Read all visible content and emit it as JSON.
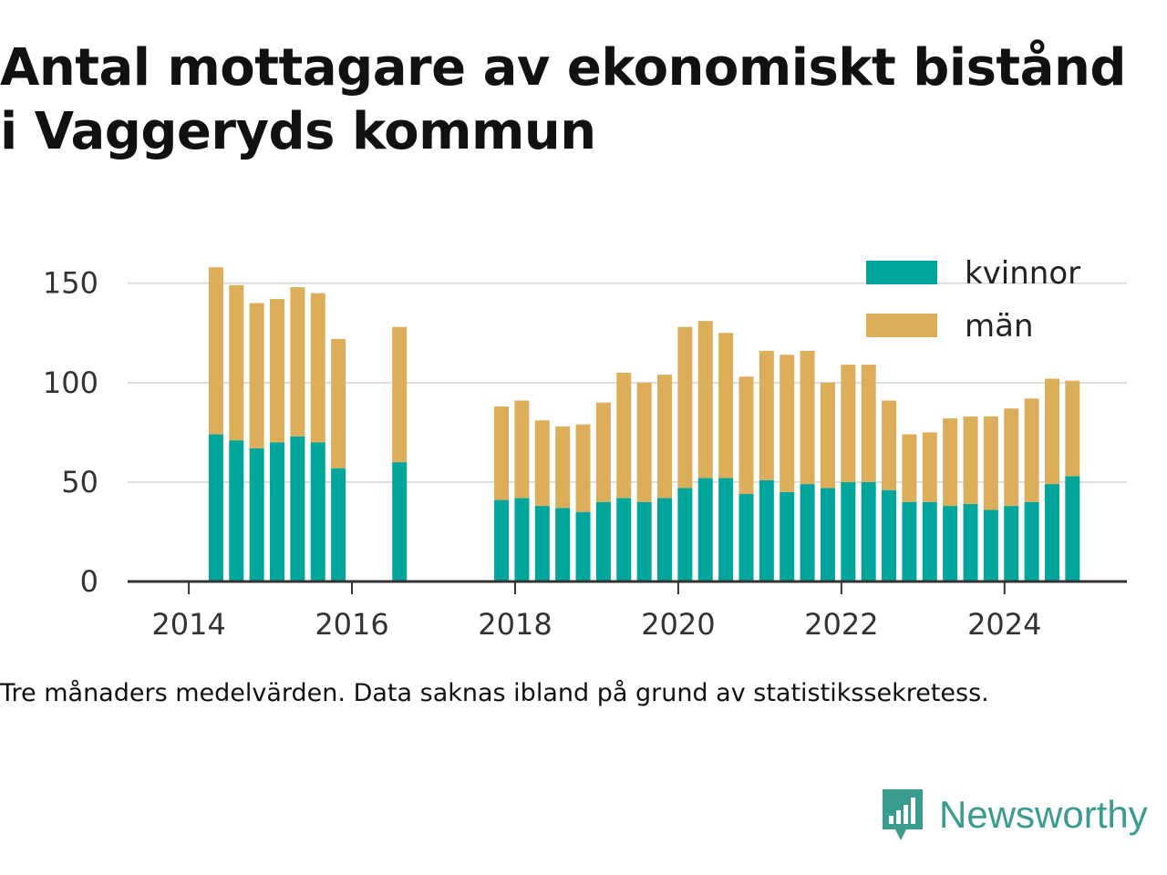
{
  "title_line1": "Antal mottagare av ekonomiskt bistånd",
  "title_line2": "i Vaggeryds kommun",
  "note": "Tre månaders medelvärden. Data saknas ibland på grund av statistikssekretess.",
  "brand": {
    "name": "Newsworthy",
    "icon": "newsworthy-chart-bubble-icon"
  },
  "chart_data": {
    "type": "bar",
    "stacked": true,
    "x": [
      "2014-05",
      "2014-08",
      "2014-11",
      "2015-02",
      "2015-05",
      "2015-08",
      "2015-11",
      "2016-08",
      "2017-11",
      "2018-02",
      "2018-05",
      "2018-08",
      "2018-11",
      "2019-02",
      "2019-05",
      "2019-08",
      "2019-11",
      "2020-02",
      "2020-05",
      "2020-08",
      "2020-11",
      "2021-02",
      "2021-05",
      "2021-08",
      "2021-11",
      "2022-02",
      "2022-05",
      "2022-08",
      "2022-11",
      "2023-02",
      "2023-05",
      "2023-08",
      "2023-11",
      "2024-02",
      "2024-05",
      "2024-08",
      "2024-11"
    ],
    "series": [
      {
        "name": "kvinnor",
        "color": "#00a59b",
        "values": [
          74,
          71,
          67,
          70,
          73,
          70,
          57,
          60,
          41,
          42,
          38,
          37,
          35,
          40,
          42,
          40,
          42,
          47,
          52,
          52,
          44,
          51,
          45,
          49,
          47,
          50,
          50,
          46,
          40,
          40,
          38,
          39,
          36,
          38,
          40,
          49,
          53
        ]
      },
      {
        "name": "män",
        "color": "#dcae5a",
        "values": [
          84,
          78,
          73,
          72,
          75,
          75,
          65,
          68,
          47,
          49,
          43,
          41,
          44,
          50,
          63,
          60,
          62,
          81,
          79,
          73,
          59,
          65,
          69,
          67,
          53,
          59,
          59,
          45,
          34,
          35,
          44,
          44,
          47,
          49,
          52,
          53,
          48
        ]
      }
    ],
    "xticks": [
      {
        "value": "2014-01",
        "label": "2014"
      },
      {
        "value": "2016-01",
        "label": "2016"
      },
      {
        "value": "2018-01",
        "label": "2018"
      },
      {
        "value": "2020-01",
        "label": "2020"
      },
      {
        "value": "2022-01",
        "label": "2022"
      },
      {
        "value": "2024-01",
        "label": "2024"
      }
    ],
    "yticks": [
      0,
      50,
      100,
      150
    ],
    "ylim": [
      0,
      165
    ],
    "xlim": [
      "2013-04",
      "2025-07"
    ],
    "grid": true,
    "legend_position": "top-right"
  }
}
